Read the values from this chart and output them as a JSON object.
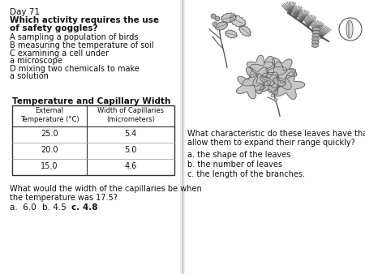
{
  "background_color": "#f0eeea",
  "left_bg": "#f0eeea",
  "right_bg": "#f0eeea",
  "divider_color": "#aaaaaa",
  "left_panel": {
    "day_label": "Day 71",
    "question_line1": "Which activity requires the use",
    "question_line2": "of safety goggles?",
    "answers": [
      "A sampling a population of birds",
      "B measuring the temperature of soil",
      "C examining a cell under",
      "a microscope",
      "D mixing two chemicals to make",
      "a solution"
    ],
    "table_title": "Temperature and Capillary Width",
    "table_headers": [
      "External\nTemperature (°C)",
      "Width of Capillaries\n(micrometers)"
    ],
    "table_data": [
      [
        "25.0",
        "5.4"
      ],
      [
        "20.0",
        "5.0"
      ],
      [
        "15.0",
        "4.6"
      ]
    ],
    "bottom_q1": "What would the width of the capillaries be when",
    "bottom_q2": "the temperature was 17.5?",
    "ans_a": "a.  6.0",
    "ans_b": "b. 4.5",
    "ans_c": "c. 4.8"
  },
  "right_panel": {
    "question1": "What characteristic do these leaves have that",
    "question2": "allow them to expand their range quickly?",
    "answers": [
      "a. the shape of the leaves",
      "b. the number of leaves",
      "c. the length of the branches."
    ]
  }
}
